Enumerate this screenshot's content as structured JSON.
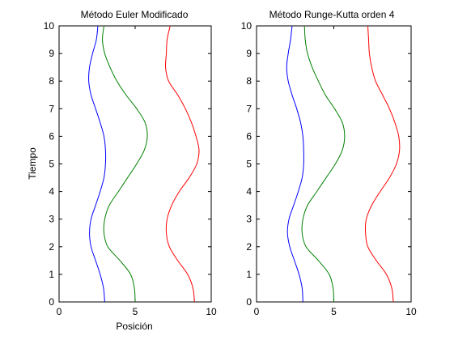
{
  "chart_data": [
    {
      "type": "line",
      "title": "Método Euler Modificado",
      "xlabel": "Posición",
      "ylabel": "Tiempo",
      "xlim": [
        0,
        10
      ],
      "ylim": [
        0,
        10
      ],
      "xticks": [
        "0",
        "5",
        "10"
      ],
      "yticks": [
        "0",
        "1",
        "2",
        "3",
        "4",
        "5",
        "6",
        "7",
        "8",
        "9",
        "10"
      ],
      "grid": false,
      "series": [
        {
          "color": "#0000ff",
          "x": [
            3.0,
            2.92,
            2.7,
            2.4,
            2.1,
            2.0,
            2.1,
            2.4,
            2.7,
            2.95,
            3.05,
            3.05,
            2.95,
            2.7,
            2.4,
            2.1,
            1.95,
            2.0,
            2.2,
            2.45,
            2.55
          ],
          "y": [
            0.0,
            0.5,
            1.0,
            1.5,
            2.0,
            2.5,
            3.0,
            3.5,
            4.0,
            4.5,
            5.0,
            5.5,
            6.0,
            6.5,
            7.0,
            7.5,
            8.0,
            8.5,
            9.0,
            9.5,
            10.0
          ]
        },
        {
          "color": "#008000",
          "x": [
            5.0,
            4.95,
            4.7,
            4.0,
            3.2,
            2.95,
            3.0,
            3.3,
            3.9,
            4.5,
            5.1,
            5.6,
            5.8,
            5.65,
            5.1,
            4.4,
            3.8,
            3.35,
            3.0,
            2.85,
            2.95
          ],
          "y": [
            0.0,
            0.5,
            1.0,
            1.5,
            2.0,
            2.5,
            3.0,
            3.5,
            4.0,
            4.5,
            5.0,
            5.5,
            6.0,
            6.5,
            7.0,
            7.5,
            8.0,
            8.5,
            9.0,
            9.5,
            10.0
          ]
        },
        {
          "color": "#ff0000",
          "x": [
            8.9,
            8.8,
            8.45,
            7.8,
            7.25,
            7.05,
            7.1,
            7.4,
            7.9,
            8.55,
            9.05,
            9.2,
            9.0,
            8.7,
            8.3,
            7.8,
            7.2,
            7.0,
            7.05,
            7.1,
            7.3
          ],
          "y": [
            0.0,
            0.5,
            1.0,
            1.5,
            2.0,
            2.5,
            3.0,
            3.5,
            4.0,
            4.5,
            5.0,
            5.5,
            6.0,
            6.5,
            7.0,
            7.5,
            8.0,
            8.5,
            9.0,
            9.5,
            10.0
          ]
        }
      ]
    },
    {
      "type": "line",
      "title": "Método Runge-Kutta orden 4",
      "xlabel": "",
      "ylabel": "",
      "xlim": [
        0,
        10
      ],
      "ylim": [
        0,
        10
      ],
      "xticks": [
        "0",
        "5",
        "10"
      ],
      "yticks": [
        "0",
        "1",
        "2",
        "3",
        "4",
        "5",
        "6",
        "7",
        "8",
        "9",
        "10"
      ],
      "grid": false,
      "series": [
        {
          "color": "#0000ff",
          "x": [
            3.0,
            2.95,
            2.75,
            2.45,
            2.15,
            2.0,
            2.1,
            2.4,
            2.7,
            2.95,
            3.05,
            3.05,
            3.0,
            2.85,
            2.6,
            2.3,
            2.05,
            1.95,
            2.05,
            2.2,
            2.3
          ],
          "y": [
            0.0,
            0.5,
            1.0,
            1.5,
            2.0,
            2.5,
            3.0,
            3.5,
            4.0,
            4.5,
            5.0,
            5.5,
            6.0,
            6.5,
            7.0,
            7.5,
            8.0,
            8.5,
            9.0,
            9.5,
            10.0
          ]
        },
        {
          "color": "#008000",
          "x": [
            5.0,
            4.95,
            4.7,
            4.0,
            3.2,
            2.95,
            3.0,
            3.3,
            3.9,
            4.5,
            5.1,
            5.55,
            5.7,
            5.55,
            5.05,
            4.45,
            4.0,
            3.6,
            3.3,
            3.15,
            3.1
          ],
          "y": [
            0.0,
            0.5,
            1.0,
            1.5,
            2.0,
            2.5,
            3.0,
            3.5,
            4.0,
            4.5,
            5.0,
            5.5,
            6.0,
            6.5,
            7.0,
            7.5,
            8.0,
            8.5,
            9.0,
            9.5,
            10.0
          ]
        },
        {
          "color": "#ff0000",
          "x": [
            8.85,
            8.75,
            8.4,
            7.75,
            7.2,
            7.05,
            7.1,
            7.45,
            8.0,
            8.6,
            9.05,
            9.25,
            9.2,
            8.95,
            8.6,
            8.15,
            7.7,
            7.45,
            7.3,
            7.25,
            7.2
          ],
          "y": [
            0.0,
            0.5,
            1.0,
            1.5,
            2.0,
            2.5,
            3.0,
            3.5,
            4.0,
            4.5,
            5.0,
            5.5,
            6.0,
            6.5,
            7.0,
            7.5,
            8.0,
            8.5,
            9.0,
            9.5,
            10.0
          ]
        }
      ]
    }
  ]
}
